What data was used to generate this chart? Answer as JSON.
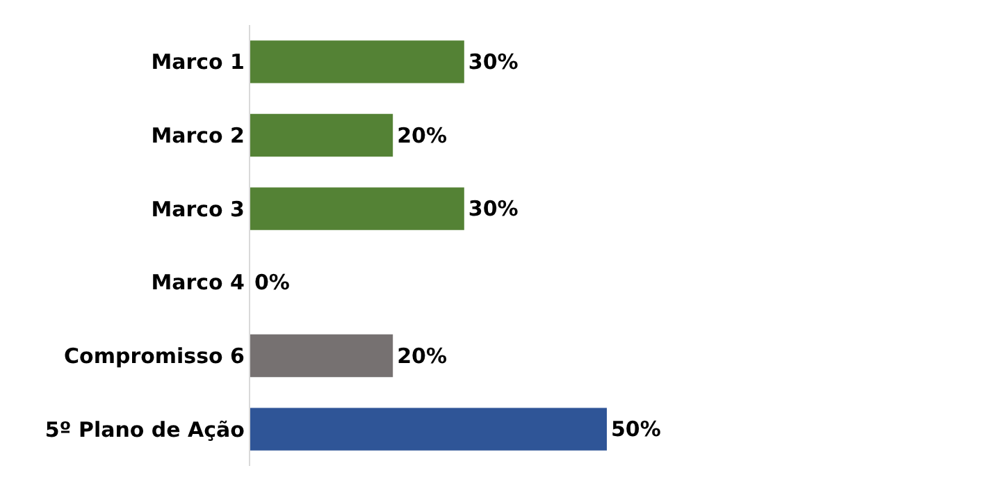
{
  "chart_data": {
    "type": "bar",
    "orientation": "horizontal",
    "categories": [
      "Marco 1",
      "Marco 2",
      "Marco 3",
      "Marco 4",
      "Compromisso 6",
      "5º Plano de Ação"
    ],
    "values": [
      30,
      20,
      30,
      0,
      20,
      50
    ],
    "colors": [
      "#548235",
      "#548235",
      "#548235",
      "#548235",
      "#767171",
      "#2f5597"
    ],
    "value_labels": [
      "30%",
      "20%",
      "30%",
      "0%",
      "20%",
      "50%"
    ],
    "legend": false
  }
}
